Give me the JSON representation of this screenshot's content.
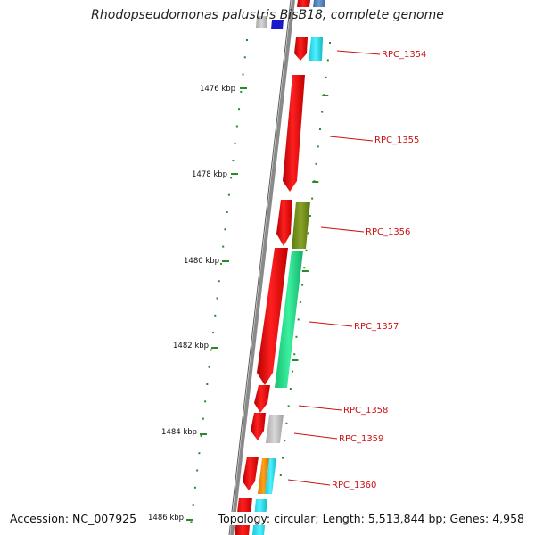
{
  "title": "Rhodopseudomonas palustris BisB18, complete genome",
  "footer": {
    "accession": "Accession: NC_007925",
    "summary": "Topology: circular; Length: 5,513,844 bp; Genes: 4,958"
  },
  "colors": {
    "backbone": "#8a8a8a",
    "tick": "#2a8a2a",
    "gene_label": "#cc1111",
    "forward_gene": "#ee1111"
  },
  "scale_labels": [
    "1476 kbp",
    "1478 kbp",
    "1480 kbp",
    "1482 kbp",
    "1484 kbp",
    "1486 kbp"
  ],
  "gene_labels": [
    "RPC_1354",
    "RPC_1355",
    "RPC_1356",
    "RPC_1357",
    "RPC_1358",
    "RPC_1359",
    "RPC_1360"
  ]
}
